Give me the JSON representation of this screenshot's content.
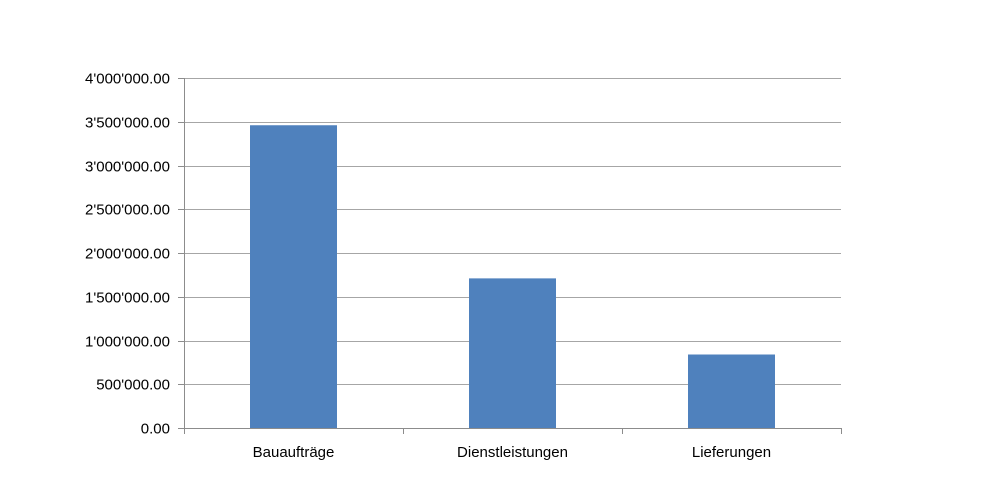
{
  "chart_data": {
    "type": "bar",
    "categories": [
      "Bauaufträge",
      "Dienstleistungen",
      "Lieferungen"
    ],
    "values": [
      3460000,
      1710000,
      840000
    ],
    "ylim": [
      0,
      4000000
    ],
    "y_ticks": [
      0,
      500000,
      1000000,
      1500000,
      2000000,
      2500000,
      3000000,
      3500000,
      4000000
    ],
    "y_tick_labels": [
      "0.00",
      "500'000.00",
      "1'000'000.00",
      "1'500'000.00",
      "2'000'000.00",
      "2'500'000.00",
      "3'000'000.00",
      "3'500'000.00",
      "4'000'000.00"
    ],
    "grid": true,
    "bar_color": "#4f81bd",
    "gridline_color": "#a6a6a6"
  }
}
